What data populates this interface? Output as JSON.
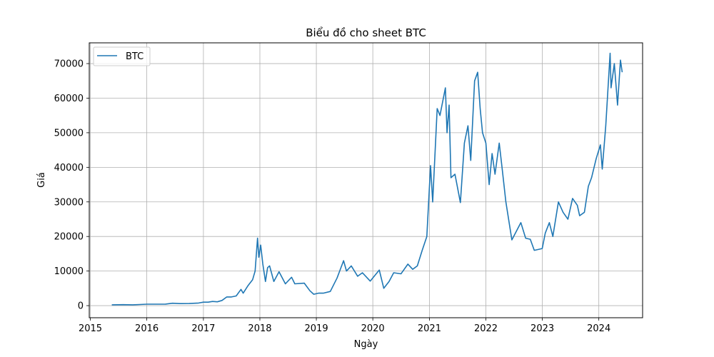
{
  "chart_data": {
    "type": "line",
    "title": "Biểu đồ cho sheet BTC",
    "xlabel": "Ngày",
    "ylabel": "Giá",
    "xlim": [
      "2014-12-25",
      "2024-10-10"
    ],
    "ylim": [
      -3500,
      76000
    ],
    "x_ticks": [
      "2015",
      "2016",
      "2017",
      "2018",
      "2019",
      "2020",
      "2021",
      "2022",
      "2023",
      "2024"
    ],
    "y_ticks": [
      0,
      10000,
      20000,
      30000,
      40000,
      50000,
      60000,
      70000
    ],
    "grid": true,
    "legend": "top-left",
    "series": [
      {
        "name": "BTC",
        "color": "#1f77b4",
        "points": [
          [
            "2015-05-20",
            240
          ],
          [
            "2015-08-01",
            280
          ],
          [
            "2015-10-01",
            240
          ],
          [
            "2015-11-15",
            330
          ],
          [
            "2016-01-01",
            430
          ],
          [
            "2016-03-01",
            420
          ],
          [
            "2016-05-01",
            450
          ],
          [
            "2016-06-15",
            700
          ],
          [
            "2016-08-01",
            580
          ],
          [
            "2016-10-01",
            610
          ],
          [
            "2016-12-01",
            750
          ],
          [
            "2017-01-01",
            1000
          ],
          [
            "2017-02-01",
            1000
          ],
          [
            "2017-03-01",
            1200
          ],
          [
            "2017-04-01",
            1100
          ],
          [
            "2017-05-01",
            1500
          ],
          [
            "2017-06-01",
            2500
          ],
          [
            "2017-07-01",
            2500
          ],
          [
            "2017-08-01",
            2800
          ],
          [
            "2017-09-01",
            4700
          ],
          [
            "2017-09-15",
            3600
          ],
          [
            "2017-10-15",
            5700
          ],
          [
            "2017-11-15",
            7500
          ],
          [
            "2017-12-01",
            10000
          ],
          [
            "2017-12-17",
            19500
          ],
          [
            "2017-12-25",
            14000
          ],
          [
            "2018-01-06",
            17500
          ],
          [
            "2018-01-20",
            12000
          ],
          [
            "2018-02-06",
            7000
          ],
          [
            "2018-02-20",
            11000
          ],
          [
            "2018-03-05",
            11500
          ],
          [
            "2018-04-01",
            7000
          ],
          [
            "2018-05-05",
            9800
          ],
          [
            "2018-06-15",
            6300
          ],
          [
            "2018-07-25",
            8200
          ],
          [
            "2018-08-15",
            6300
          ],
          [
            "2018-10-15",
            6500
          ],
          [
            "2018-11-20",
            4300
          ],
          [
            "2018-12-15",
            3300
          ],
          [
            "2019-01-15",
            3600
          ],
          [
            "2019-02-15",
            3600
          ],
          [
            "2019-04-01",
            4100
          ],
          [
            "2019-05-15",
            8000
          ],
          [
            "2019-06-26",
            13000
          ],
          [
            "2019-07-15",
            10000
          ],
          [
            "2019-08-15",
            11500
          ],
          [
            "2019-09-25",
            8500
          ],
          [
            "2019-10-26",
            9500
          ],
          [
            "2019-12-15",
            7100
          ],
          [
            "2020-02-12",
            10300
          ],
          [
            "2020-03-12",
            5000
          ],
          [
            "2020-04-15",
            7000
          ],
          [
            "2020-05-15",
            9500
          ],
          [
            "2020-07-01",
            9200
          ],
          [
            "2020-08-15",
            12000
          ],
          [
            "2020-09-15",
            10500
          ],
          [
            "2020-10-15",
            11500
          ],
          [
            "2020-11-15",
            16000
          ],
          [
            "2020-12-15",
            20000
          ],
          [
            "2021-01-08",
            40500
          ],
          [
            "2021-01-22",
            30000
          ],
          [
            "2021-02-20",
            57000
          ],
          [
            "2021-03-10",
            55000
          ],
          [
            "2021-04-14",
            63000
          ],
          [
            "2021-04-25",
            50000
          ],
          [
            "2021-05-08",
            58000
          ],
          [
            "2021-05-20",
            37000
          ],
          [
            "2021-06-15",
            38000
          ],
          [
            "2021-07-20",
            29800
          ],
          [
            "2021-08-15",
            47000
          ],
          [
            "2021-09-07",
            52000
          ],
          [
            "2021-09-25",
            42000
          ],
          [
            "2021-10-20",
            65000
          ],
          [
            "2021-11-09",
            67500
          ],
          [
            "2021-11-25",
            57000
          ],
          [
            "2021-12-10",
            50000
          ],
          [
            "2022-01-01",
            47000
          ],
          [
            "2022-01-22",
            35000
          ],
          [
            "2022-02-10",
            44000
          ],
          [
            "2022-03-01",
            38000
          ],
          [
            "2022-03-28",
            47000
          ],
          [
            "2022-04-15",
            40000
          ],
          [
            "2022-05-10",
            30000
          ],
          [
            "2022-06-18",
            19000
          ],
          [
            "2022-08-15",
            24000
          ],
          [
            "2022-09-15",
            19500
          ],
          [
            "2022-10-15",
            19200
          ],
          [
            "2022-11-10",
            16000
          ],
          [
            "2022-12-31",
            16500
          ],
          [
            "2023-01-20",
            21000
          ],
          [
            "2023-02-15",
            24000
          ],
          [
            "2023-03-10",
            20000
          ],
          [
            "2023-04-15",
            30000
          ],
          [
            "2023-05-15",
            27000
          ],
          [
            "2023-06-15",
            25000
          ],
          [
            "2023-07-15",
            31000
          ],
          [
            "2023-08-15",
            29000
          ],
          [
            "2023-08-30",
            26000
          ],
          [
            "2023-09-30",
            27000
          ],
          [
            "2023-10-25",
            34500
          ],
          [
            "2023-11-15",
            37000
          ],
          [
            "2023-12-15",
            42500
          ],
          [
            "2024-01-11",
            46500
          ],
          [
            "2024-01-23",
            39500
          ],
          [
            "2024-02-15",
            52000
          ],
          [
            "2024-03-14",
            73000
          ],
          [
            "2024-03-20",
            63000
          ],
          [
            "2024-04-10",
            70000
          ],
          [
            "2024-05-01",
            58000
          ],
          [
            "2024-05-20",
            71000
          ],
          [
            "2024-05-31",
            67500
          ]
        ]
      }
    ]
  }
}
